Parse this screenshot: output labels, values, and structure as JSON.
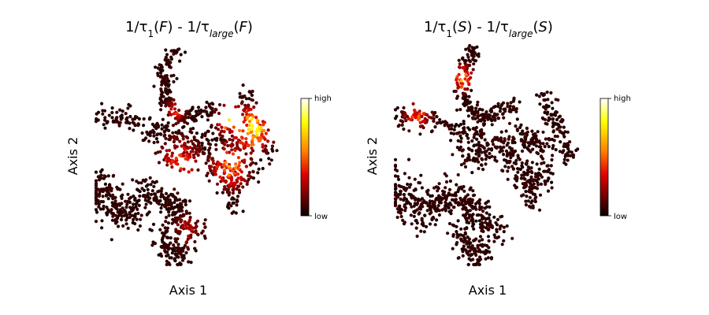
{
  "colormap": "hot",
  "colormap_stops": [
    "#0b0000",
    "#e00000",
    "#ff8000",
    "#ffff00",
    "#ffffff"
  ],
  "chart_data": [
    {
      "type": "scatter",
      "title_main": "1/τ",
      "title_sub1": "1",
      "title_arg1": "F",
      "title_mid": " - 1/τ",
      "title_sub2": "large",
      "title_arg2": "F",
      "xlabel": "Axis 1",
      "ylabel": "Axis 2",
      "colorbar": {
        "high_label": "high",
        "low_label": "low"
      },
      "highlight_regions": [
        {
          "x": 0.84,
          "y": 0.62,
          "spread": 0.07,
          "level": 0.75,
          "share": 0.1
        },
        {
          "x": 0.72,
          "y": 0.66,
          "spread": 0.05,
          "level": 0.62,
          "share": 0.07
        },
        {
          "x": 0.72,
          "y": 0.45,
          "spread": 0.07,
          "level": 0.55,
          "share": 0.08
        },
        {
          "x": 0.45,
          "y": 0.47,
          "spread": 0.08,
          "level": 0.4,
          "share": 0.06
        },
        {
          "x": 0.43,
          "y": 0.7,
          "spread": 0.04,
          "level": 0.35,
          "share": 0.03
        },
        {
          "x": 0.5,
          "y": 0.16,
          "spread": 0.06,
          "level": 0.25,
          "share": 0.04
        }
      ],
      "seed": 7
    },
    {
      "type": "scatter",
      "title_main": "1/τ",
      "title_sub1": "1",
      "title_arg1": "S",
      "title_mid": " - 1/τ",
      "title_sub2": "large",
      "title_arg2": "S",
      "xlabel": "Axis 1",
      "ylabel": "Axis 2",
      "colorbar": {
        "high_label": "high",
        "low_label": "low"
      },
      "highlight_regions": [
        {
          "x": 0.36,
          "y": 0.85,
          "spread": 0.04,
          "level": 0.6,
          "share": 0.07
        },
        {
          "x": 0.12,
          "y": 0.68,
          "spread": 0.05,
          "level": 0.45,
          "share": 0.05
        },
        {
          "x": 0.55,
          "y": 0.6,
          "spread": 0.1,
          "level": 0.08,
          "share": 0.03
        }
      ],
      "seed": 13
    }
  ]
}
